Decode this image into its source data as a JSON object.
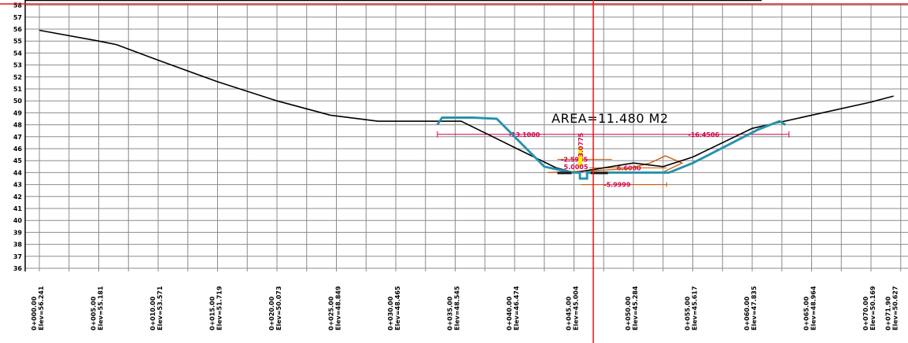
{
  "chart_data": {
    "type": "line",
    "title": "",
    "xlabel": "",
    "ylabel": "",
    "ylim": [
      36,
      58
    ],
    "xlim": [
      0,
      71.9
    ],
    "grid": true,
    "y_ticks": [
      "58",
      "57",
      "56",
      "55",
      "54",
      "53",
      "52",
      "51",
      "50",
      "49",
      "48",
      "47",
      "46",
      "45",
      "44",
      "43",
      "42",
      "41",
      "40",
      "39",
      "38",
      "37",
      "36"
    ],
    "stations": [
      {
        "sta": "0+000.00",
        "elev": "Elev=56.241"
      },
      {
        "sta": "0+005.00",
        "elev": "Elev=55.181"
      },
      {
        "sta": "0+010.00",
        "elev": "Elev=53.571"
      },
      {
        "sta": "0+015.00",
        "elev": "Elev=51.719"
      },
      {
        "sta": "0+020.00",
        "elev": "Elev=50.073"
      },
      {
        "sta": "0+025.00",
        "elev": "Elev=48.849"
      },
      {
        "sta": "0+030.00",
        "elev": "Elev=48.465"
      },
      {
        "sta": "0+035.00",
        "elev": "Elev=48.545"
      },
      {
        "sta": "0+040.00",
        "elev": "Elev=46.474"
      },
      {
        "sta": "0+045.00",
        "elev": "Elev=45.004"
      },
      {
        "sta": "0+050.00",
        "elev": "Elev=45.284"
      },
      {
        "sta": "0+055.00",
        "elev": "Elev=45.617"
      },
      {
        "sta": "0+060.00",
        "elev": "Elev=47.835"
      },
      {
        "sta": "0+065.00",
        "elev": "Elev=48.964"
      },
      {
        "sta": "0+070.00",
        "elev": "Elev=50.169"
      },
      {
        "sta": "0+071.90",
        "elev": "Elev=50.627"
      }
    ],
    "series": [
      {
        "name": "",
        "x": [
          0,
          5,
          6.5,
          10,
          15,
          20,
          24.5,
          28.5,
          35.5,
          40,
          43.5,
          45,
          50,
          52.5,
          55,
          60,
          65,
          70,
          71.9
        ],
        "y": [
          55.9,
          55.0,
          54.7,
          53.4,
          51.6,
          50.0,
          48.8,
          48.3,
          48.3,
          46.1,
          44.4,
          44.0,
          44.8,
          44.5,
          45.3,
          47.7,
          48.8,
          49.9,
          50.4
        ]
      },
      {
        "name": "",
        "x": [
          33.5,
          33.9,
          34.2,
          36.5,
          38.5,
          42.5,
          44.8,
          45.5,
          45.5,
          46.1,
          46.1,
          53.0,
          55.0,
          60.5,
          62.3,
          62.8
        ],
        "y": [
          48.0,
          48.6,
          48.6,
          48.6,
          48.5,
          44.5,
          44.0,
          44.0,
          43.5,
          43.5,
          44.0,
          44.0,
          44.8,
          47.6,
          48.3,
          48.0
        ]
      },
      {
        "name": "",
        "x": [
          42.8,
          49.4,
          51.4,
          52.7,
          54.1,
          52.4
        ],
        "y": [
          44.0,
          44.3,
          44.8,
          45.4,
          44.8,
          44.0
        ]
      }
    ],
    "annotations": {
      "area": "AREA=11.480  M2",
      "dims": [
        "-13.1000",
        "-16.4506",
        "-2.5985",
        "6.6000",
        "-5.9999",
        "5.0005",
        "3.0775"
      ]
    },
    "colors": {
      "grid": "#8c8c8c",
      "ground": "#000000",
      "design": "#2aa3a3",
      "design_inner": "#2d6fd0",
      "dimension": "#d4004c",
      "orange": "#cc5500",
      "cursor": "#e8121a",
      "highlight": "#ffee00"
    }
  }
}
